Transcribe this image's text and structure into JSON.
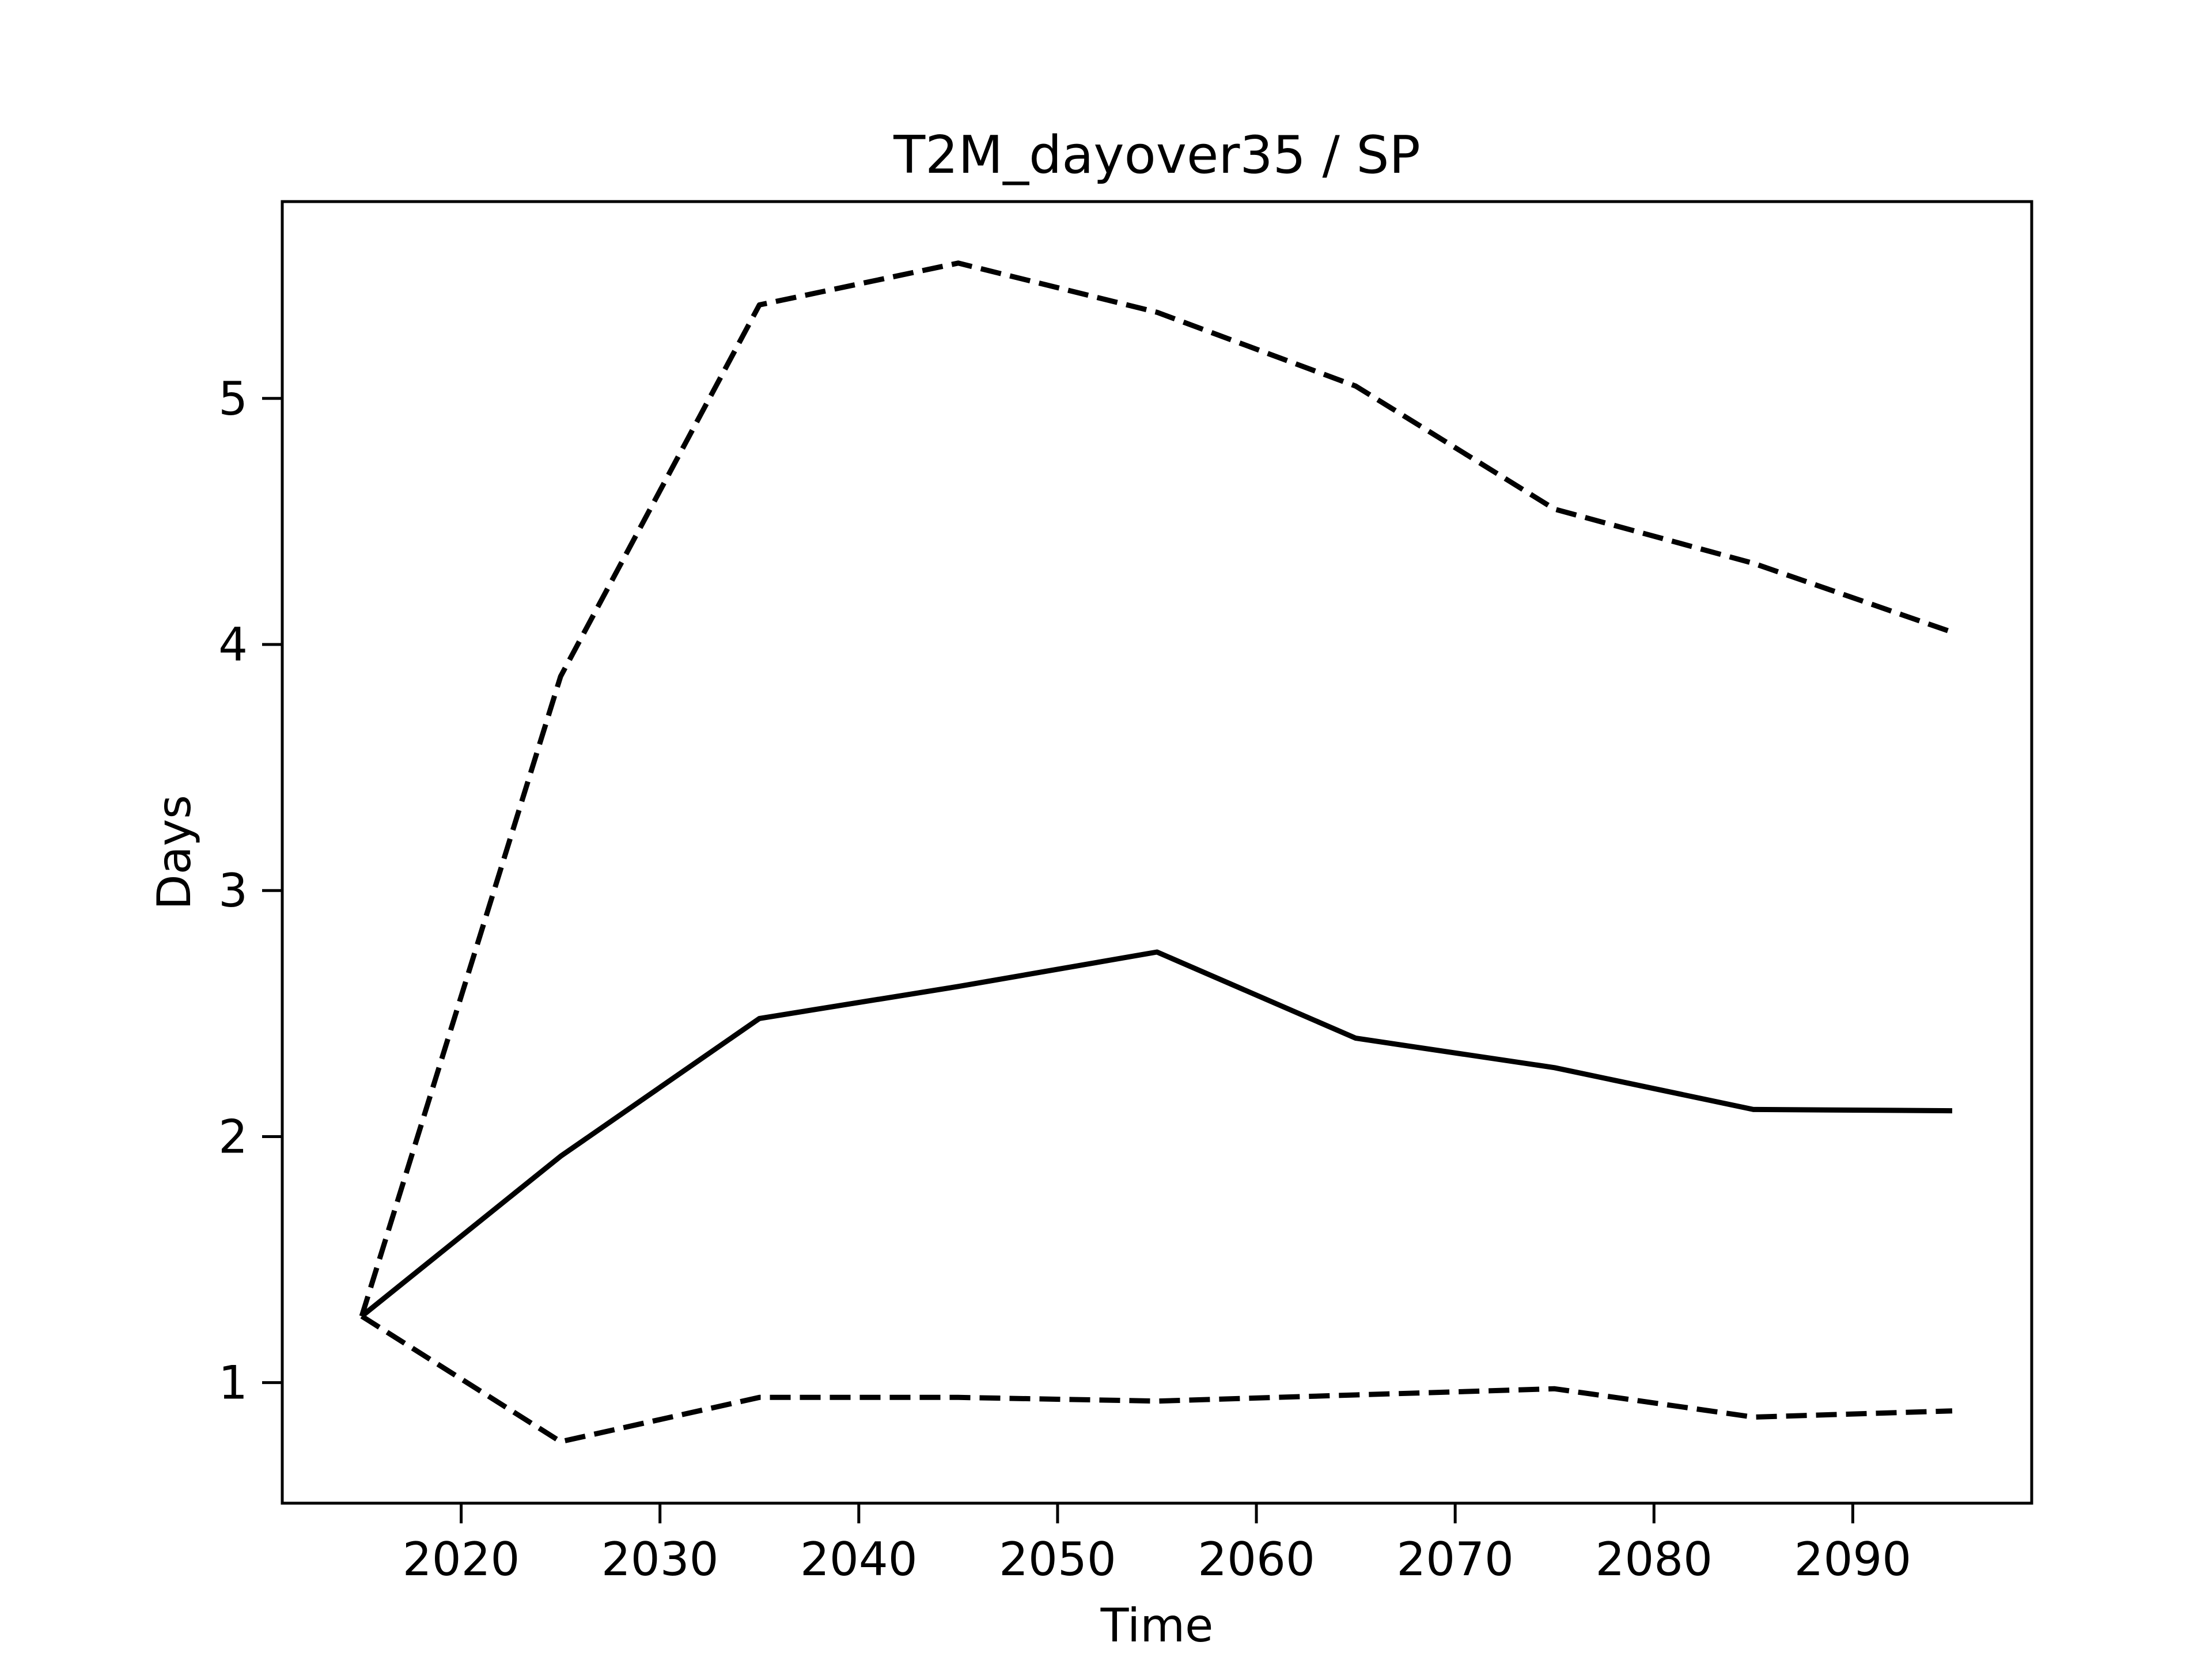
{
  "chart_data": {
    "type": "line",
    "title": "T2M_dayover35 / SP",
    "xlabel": "Time",
    "ylabel": "Days",
    "x": [
      2015,
      2025,
      2035,
      2045,
      2055,
      2065,
      2075,
      2085,
      2095
    ],
    "series": [
      {
        "style": "solid",
        "color": "#000000",
        "values": [
          1.27,
          1.92,
          2.48,
          2.61,
          2.75,
          2.4,
          2.28,
          2.11,
          2.105
        ]
      },
      {
        "style": "dashed",
        "color": "#000000",
        "values": [
          1.27,
          3.87,
          5.38,
          5.55,
          5.35,
          5.05,
          4.55,
          4.33,
          4.05
        ]
      },
      {
        "style": "dashed",
        "color": "#000000",
        "values": [
          1.27,
          0.76,
          0.94,
          0.94,
          0.925,
          0.95,
          0.975,
          0.86,
          0.885
        ]
      }
    ],
    "xlim": [
      2011,
      2099
    ],
    "ylim": [
      0.51,
      5.8
    ],
    "xticks": [
      2020,
      2030,
      2040,
      2050,
      2060,
      2070,
      2080,
      2090
    ],
    "yticks": [
      1,
      2,
      3,
      4,
      5
    ],
    "grid": false,
    "legend": false
  }
}
